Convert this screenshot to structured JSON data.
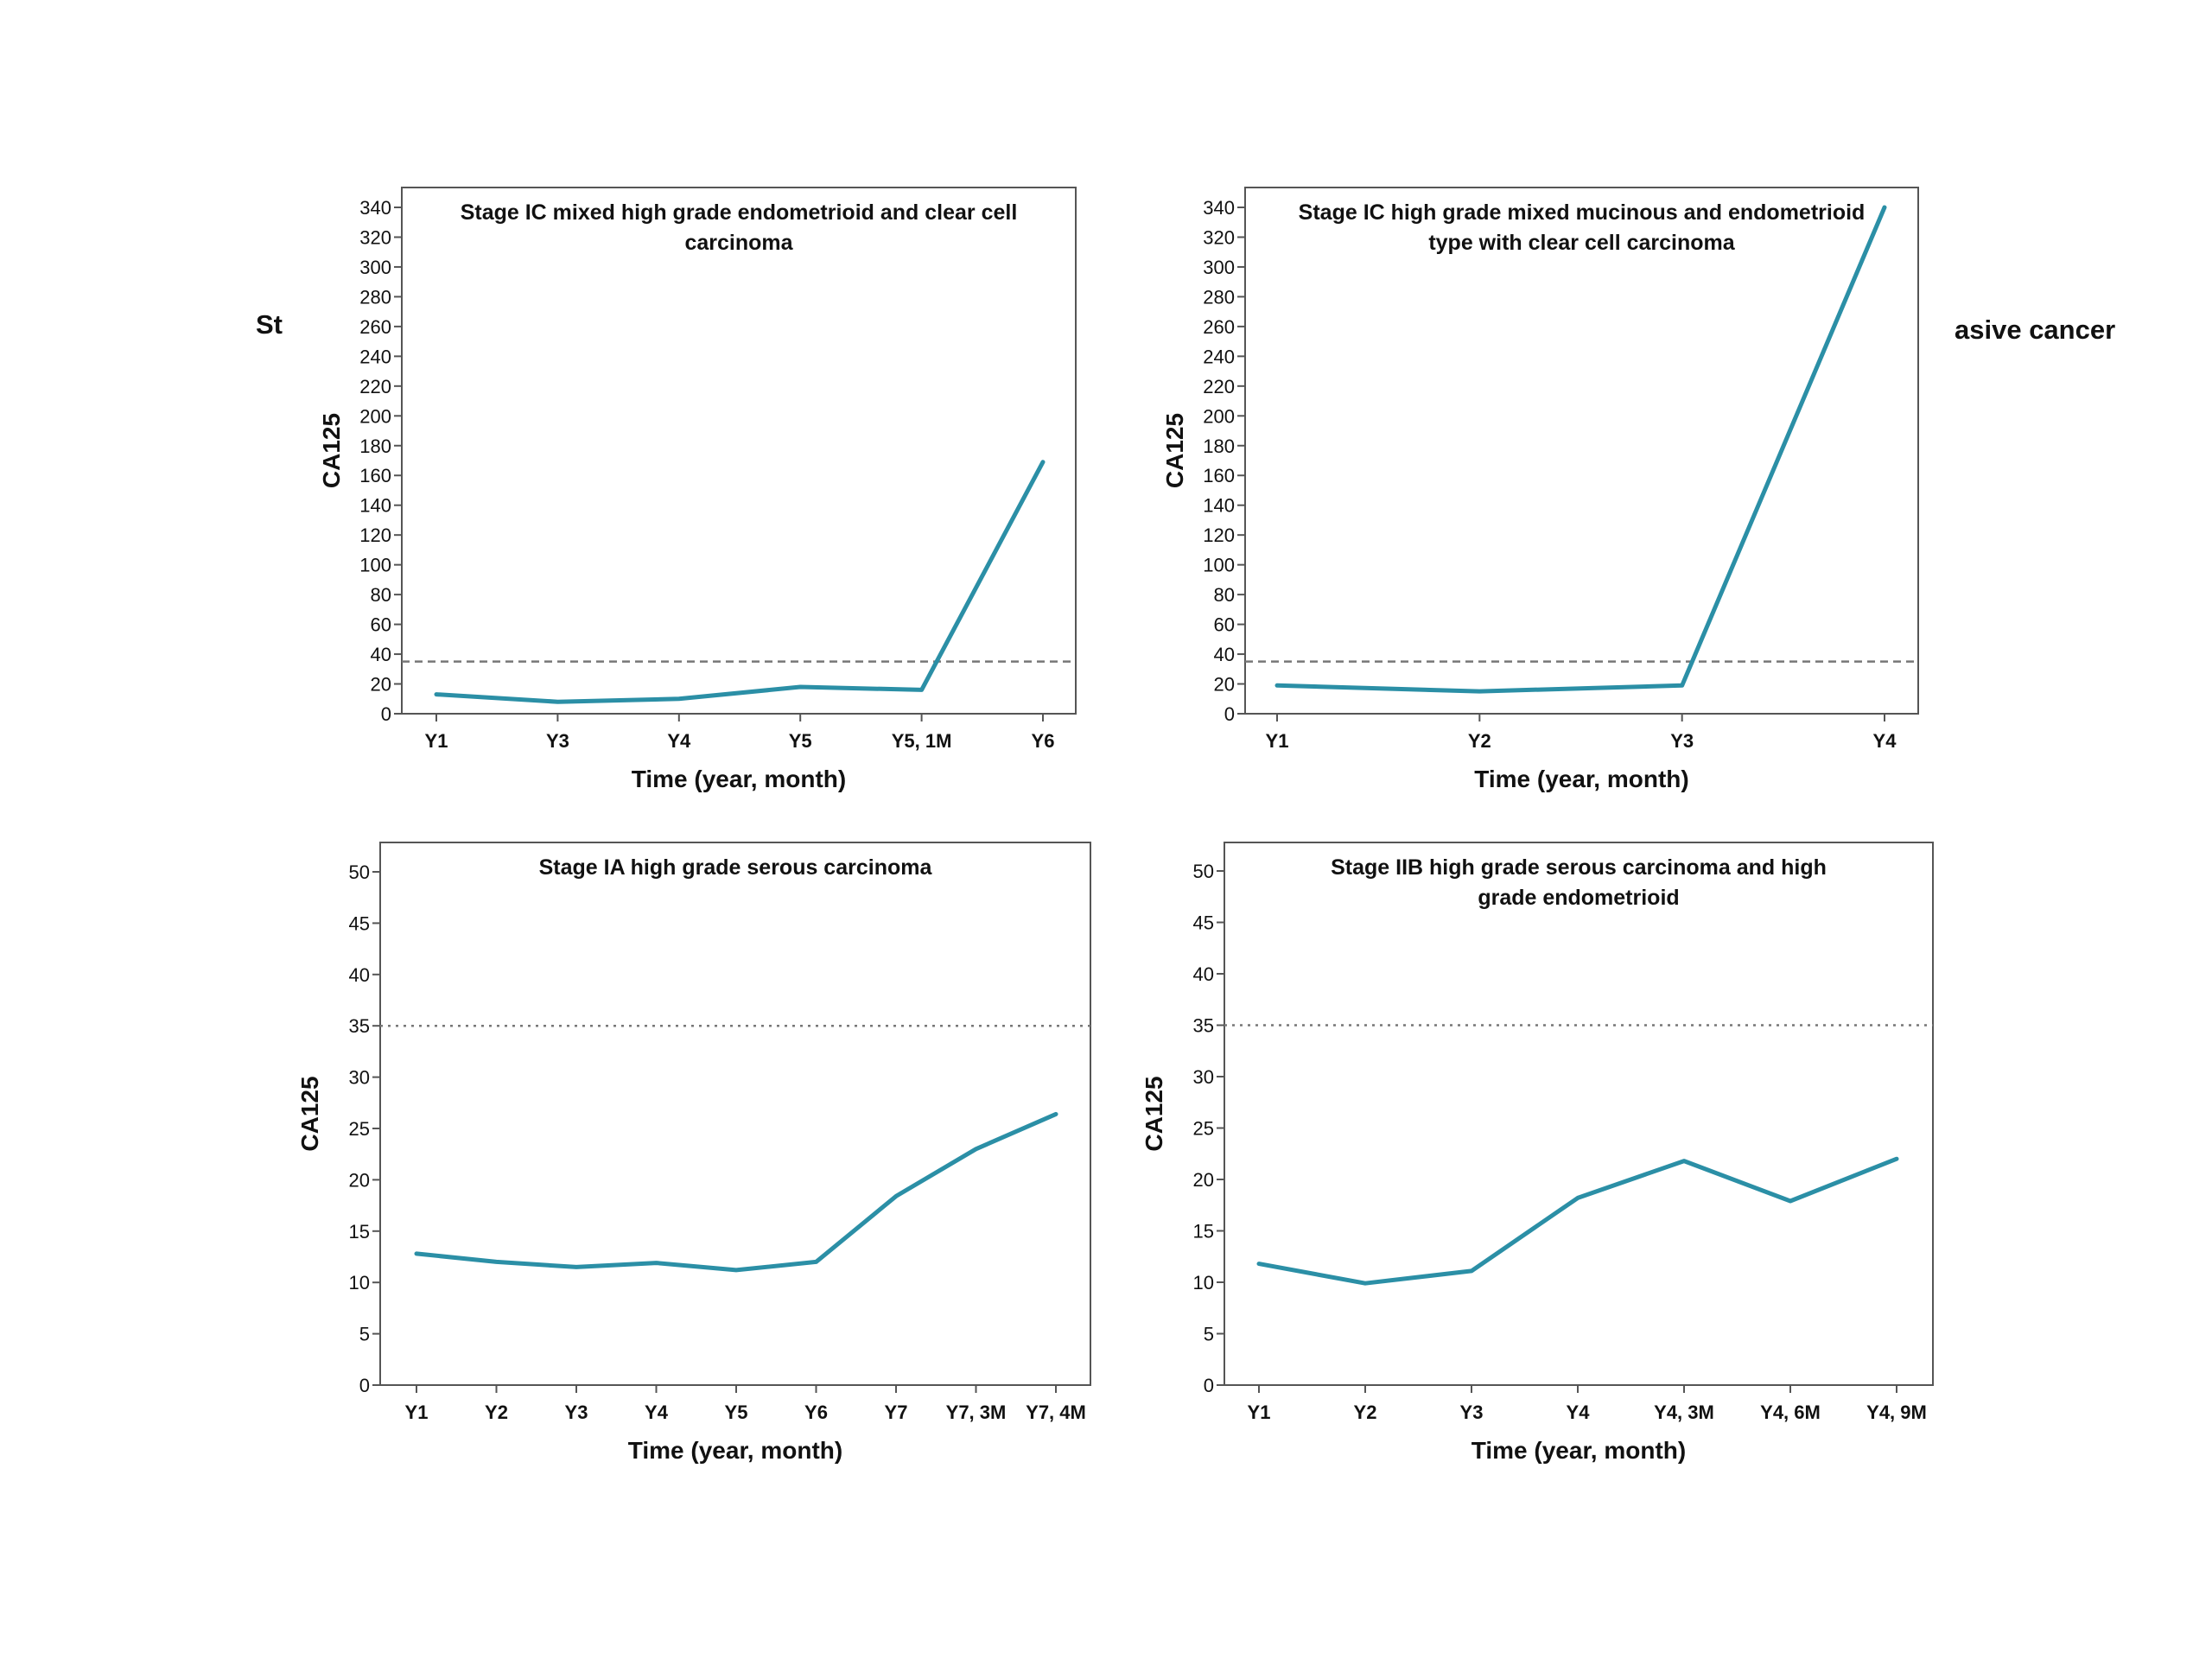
{
  "fragments": {
    "left": "St",
    "right": "asive cancer"
  },
  "style": {
    "line_color": "#2b8fa6",
    "threshold_color": "#777777",
    "axis_color": "#555555",
    "text_color": "#111111"
  },
  "chart_data": [
    {
      "type": "line",
      "title": [
        "Stage IC mixed high grade endometrioid and clear cell",
        "carcinoma"
      ],
      "categories": [
        "Y1",
        "Y3",
        "Y4",
        "Y5",
        "Y5, 1M",
        "Y6"
      ],
      "values": [
        13,
        8,
        10,
        18,
        16,
        169
      ],
      "xlabel": "Time (year, month)",
      "ylabel": "CA125",
      "ylim": [
        0,
        340
      ],
      "ytick_step": 20,
      "reference_line": {
        "y": 35,
        "style": "dashed"
      },
      "grid": false
    },
    {
      "type": "line",
      "title": [
        "Stage IC high grade mixed mucinous and endometrioid",
        "type with clear cell carcinoma"
      ],
      "categories": [
        "Y1",
        "Y2",
        "Y3",
        "Y4"
      ],
      "values": [
        19,
        15,
        19,
        340
      ],
      "xlabel": "Time (year, month)",
      "ylabel": "CA125",
      "ylim": [
        0,
        340
      ],
      "ytick_step": 20,
      "reference_line": {
        "y": 35,
        "style": "dashed"
      },
      "grid": false
    },
    {
      "type": "line",
      "title": [
        "Stage IA high grade serous carcinoma"
      ],
      "categories": [
        "Y1",
        "Y2",
        "Y3",
        "Y4",
        "Y5",
        "Y6",
        "Y7",
        "Y7, 3M",
        "Y7, 4M"
      ],
      "values": [
        12.8,
        12.0,
        11.5,
        11.9,
        11.2,
        12.0,
        18.4,
        23.0,
        26.4
      ],
      "xlabel": "Time (year, month)",
      "ylabel": "CA125",
      "ylim": [
        0,
        50
      ],
      "ytick_step": 5,
      "reference_line": {
        "y": 35,
        "style": "dotted"
      },
      "grid": false
    },
    {
      "type": "line",
      "title": [
        "Stage IIB high grade serous carcinoma and high",
        "grade endometrioid"
      ],
      "categories": [
        "Y1",
        "Y2",
        "Y3",
        "Y4",
        "Y4, 3M",
        "Y4, 6M",
        "Y4, 9M"
      ],
      "values": [
        11.8,
        9.9,
        11.1,
        18.2,
        21.8,
        17.9,
        22.0
      ],
      "xlabel": "Time (year, month)",
      "ylabel": "CA125",
      "ylim": [
        0,
        50
      ],
      "ytick_step": 5,
      "reference_line": {
        "y": 35,
        "style": "dotted"
      },
      "grid": false
    }
  ]
}
